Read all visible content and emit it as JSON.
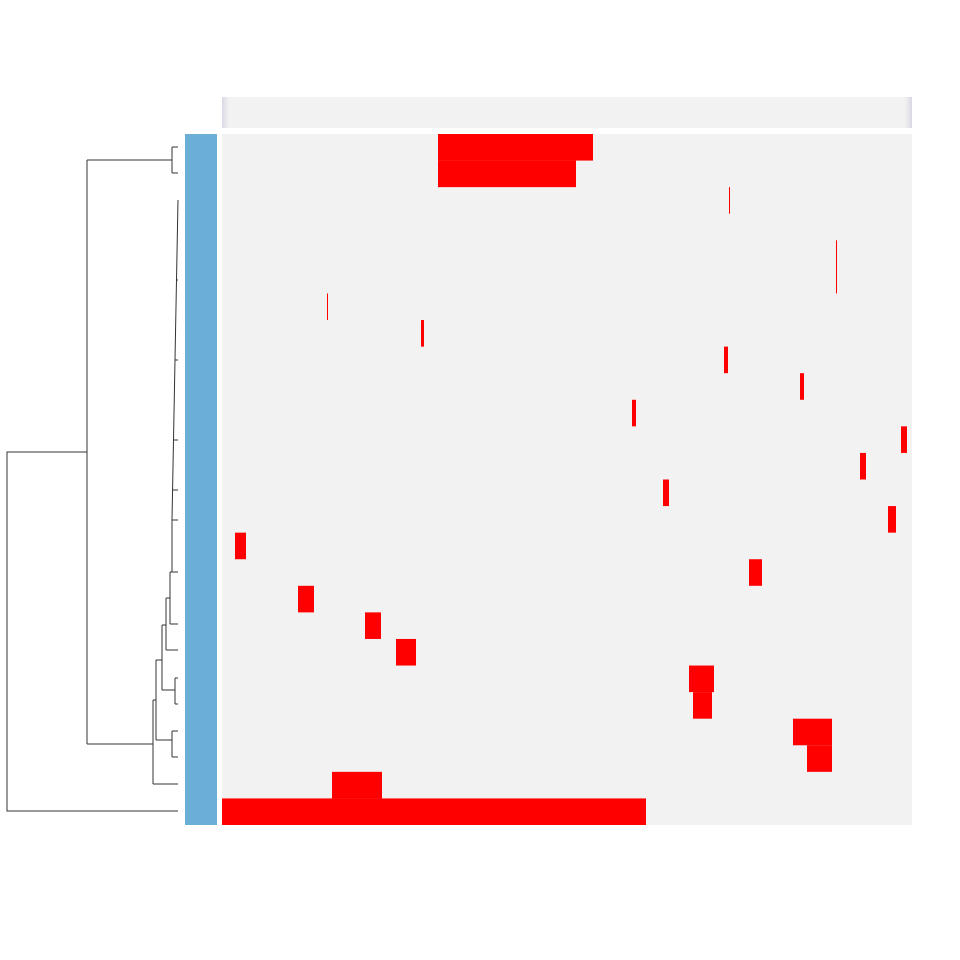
{
  "chart_data": {
    "type": "heatmap",
    "xlim": [
      0,
      690
    ],
    "cell_color": "#ff0000",
    "background_color": "#f2f2f2",
    "row_bar_color": "#6baed6",
    "rows": [
      {
        "spans": [
          [
            216,
            371
          ]
        ]
      },
      {
        "spans": [
          [
            216,
            354
          ]
        ]
      },
      {
        "spans": [
          [
            507,
            508
          ]
        ]
      },
      {
        "spans": []
      },
      {
        "spans": [
          [
            614,
            615
          ]
        ]
      },
      {
        "spans": [
          [
            614,
            615
          ]
        ]
      },
      {
        "spans": [
          [
            105,
            106
          ]
        ]
      },
      {
        "spans": [
          [
            199,
            202
          ]
        ]
      },
      {
        "spans": [
          [
            502,
            506
          ]
        ]
      },
      {
        "spans": [
          [
            578,
            582
          ]
        ]
      },
      {
        "spans": [
          [
            410,
            414
          ]
        ]
      },
      {
        "spans": [
          [
            679,
            685
          ]
        ]
      },
      {
        "spans": [
          [
            638,
            644
          ]
        ]
      },
      {
        "spans": [
          [
            441,
            447
          ]
        ]
      },
      {
        "spans": [
          [
            666,
            674
          ]
        ]
      },
      {
        "spans": [
          [
            13,
            24
          ]
        ]
      },
      {
        "spans": [
          [
            527,
            540
          ]
        ]
      },
      {
        "spans": [
          [
            76,
            92
          ]
        ]
      },
      {
        "spans": [
          [
            143,
            159
          ]
        ]
      },
      {
        "spans": [
          [
            174,
            194
          ]
        ]
      },
      {
        "spans": [
          [
            467,
            492
          ]
        ]
      },
      {
        "spans": [
          [
            471,
            490
          ]
        ]
      },
      {
        "spans": [
          [
            571,
            610
          ]
        ]
      },
      {
        "spans": [
          [
            585,
            610
          ]
        ]
      },
      {
        "spans": [
          [
            110,
            160
          ]
        ]
      },
      {
        "spans": [
          [
            0,
            424
          ]
        ]
      }
    ]
  }
}
